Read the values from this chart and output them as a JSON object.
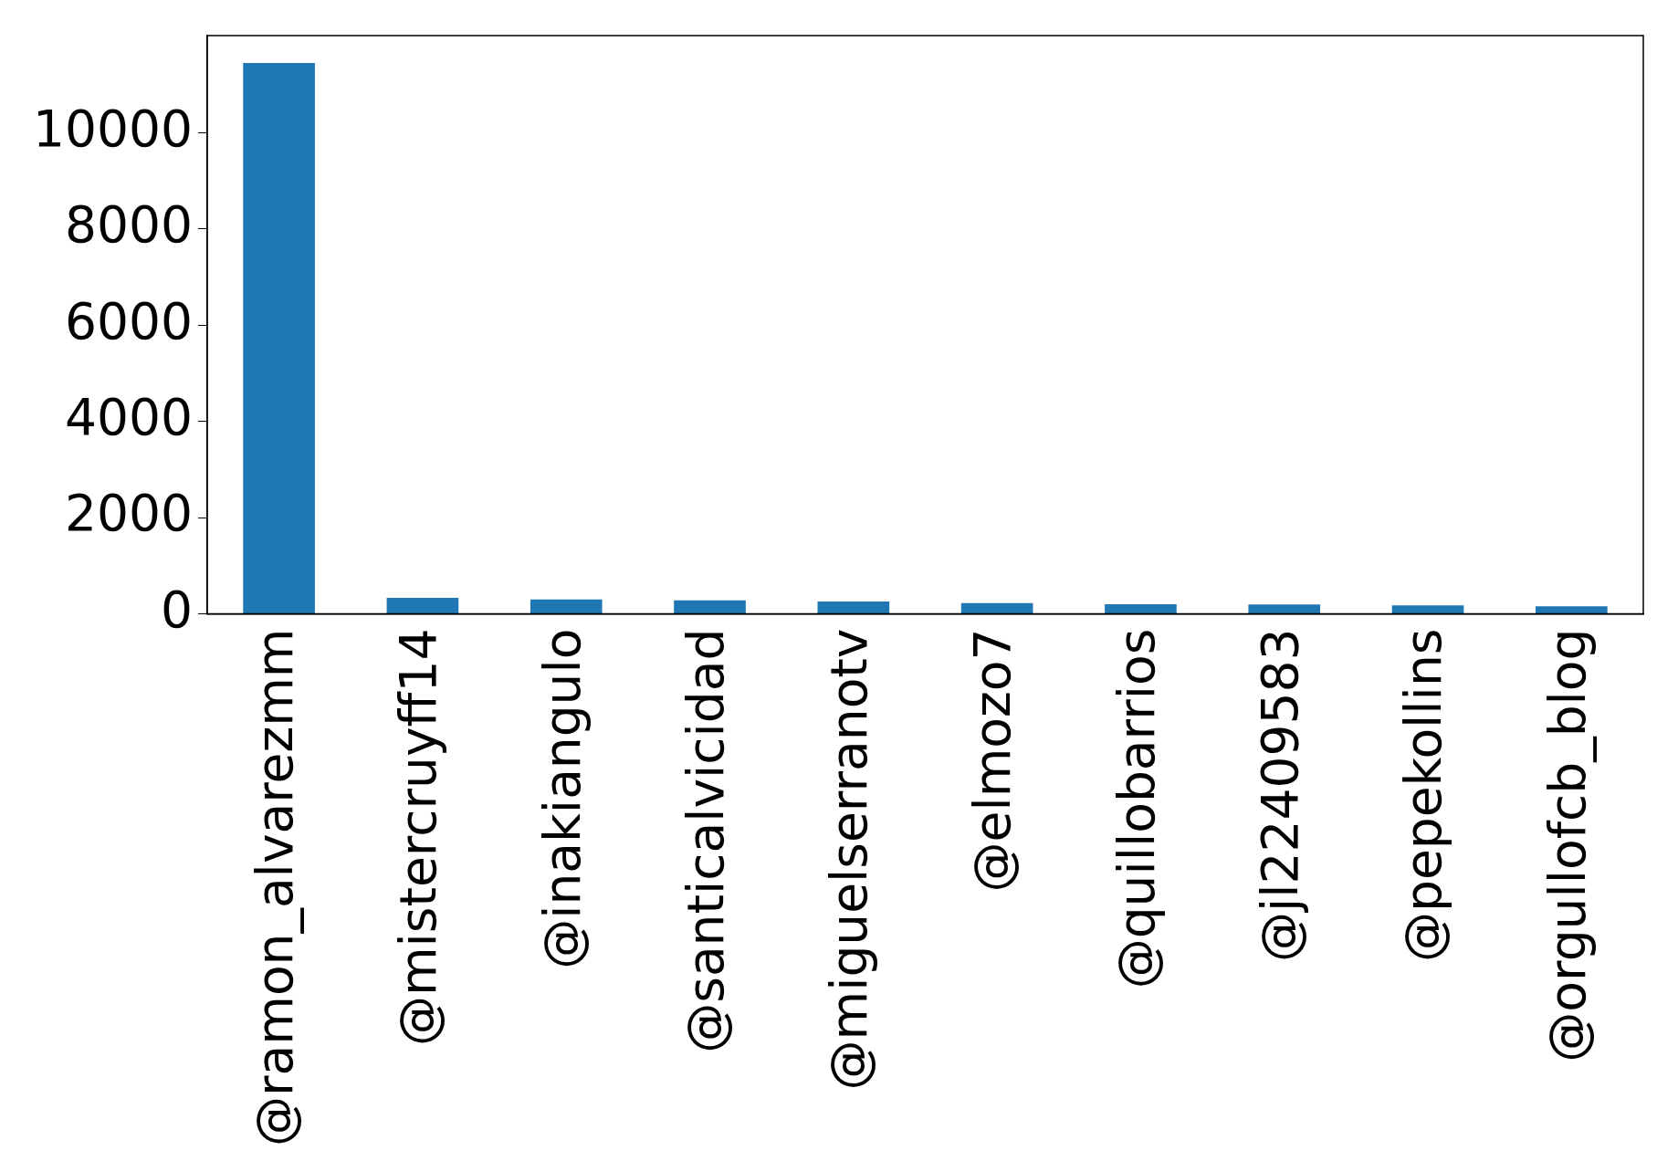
{
  "chart_data": {
    "type": "bar",
    "categories": [
      "@ramon_alvarezmm",
      "@mistercruyff14",
      "@inakiangulo",
      "@santicalvicidad",
      "@miguelserranotv",
      "@elmozo7",
      "@quillobarrios",
      "@jl22409583",
      "@pepekollins",
      "@orgullofcb_blog"
    ],
    "values": [
      11450,
      336,
      302,
      280,
      257,
      224,
      201,
      198,
      179,
      157
    ],
    "color": "#1f77b4",
    "ylim": [
      0,
      12020
    ],
    "yticks": [
      0,
      2000,
      4000,
      6000,
      8000,
      10000
    ],
    "grid": false,
    "legend": false
  }
}
